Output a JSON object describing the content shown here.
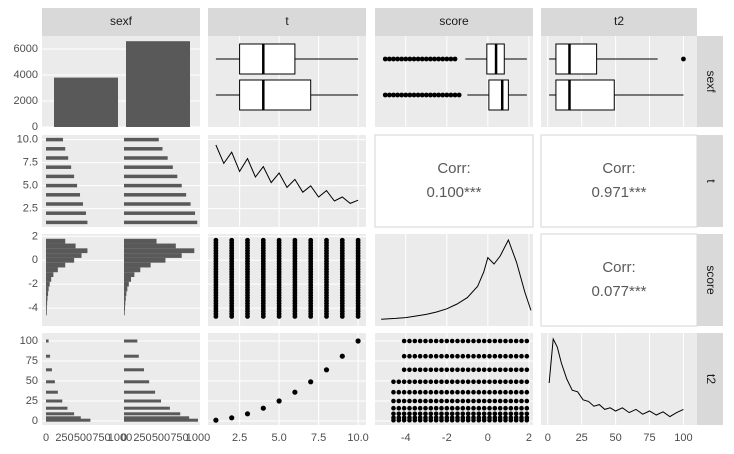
{
  "chart_data": {
    "type": "pairs",
    "variables": [
      "sexf",
      "t",
      "score",
      "t2"
    ],
    "colors": {
      "panel_bg": "#ebebeb",
      "strip_bg": "#d9d9d9",
      "grid": "#ffffff",
      "bar": "#595959",
      "ink": "#000000",
      "corr_text": "#595959",
      "axis_text": "#4d4d4d"
    },
    "axes": {
      "sexf_count": {
        "range": [
          0,
          7000
        ],
        "ticks": [
          "0",
          "2000",
          "4000",
          "6000"
        ]
      },
      "t": {
        "range": [
          0.5,
          10.5
        ],
        "ticks": [
          "2.5",
          "5.0",
          "7.5",
          "10.0"
        ]
      },
      "score": {
        "range": [
          -5.5,
          2.2
        ],
        "x_ticks": [
          "-4",
          "-2",
          "0",
          "2"
        ],
        "y_ticks": [
          "-4",
          "-2",
          "0",
          "2"
        ]
      },
      "t2": {
        "range": [
          -5,
          110
        ],
        "ticks": [
          "0",
          "25",
          "50",
          "75",
          "100"
        ]
      },
      "facet_count_ticks": [
        "0",
        "250",
        "500",
        "750",
        "1000"
      ]
    },
    "sexf_counts": {
      "group_1": 3800,
      "group_2": 6600
    },
    "boxplots": {
      "t": [
        {
          "min": 1,
          "q1": 2.5,
          "median": 4,
          "q3": 6,
          "max": 10
        },
        {
          "min": 1,
          "q1": 2.5,
          "median": 4,
          "q3": 7,
          "max": 10
        }
      ],
      "score": [
        {
          "min": -1.1,
          "q1": -0.05,
          "median": 0.4,
          "q3": 0.8,
          "max": 1.9,
          "outlier_low": -5.0,
          "outlier_high": -1.4
        },
        {
          "min": -1.0,
          "q1": 0.05,
          "median": 0.7,
          "q3": 1.0,
          "max": 1.9,
          "outlier_low": -5.0,
          "outlier_high": -1.3
        }
      ],
      "t2": [
        {
          "min": 1,
          "q1": 6,
          "median": 16,
          "q3": 36,
          "max": 81,
          "outlier": 100
        },
        {
          "min": 1,
          "q1": 6,
          "median": 16,
          "q3": 49,
          "max": 100
        }
      ]
    },
    "t_levels": [
      1,
      2,
      3,
      4,
      5,
      6,
      7,
      8,
      9,
      10
    ],
    "t_hist_counts": {
      "group_1": [
        560,
        540,
        500,
        460,
        420,
        380,
        340,
        300,
        260,
        230
      ],
      "group_2": [
        990,
        960,
        900,
        840,
        780,
        720,
        660,
        590,
        520,
        470
      ]
    },
    "t2_values": [
      1,
      4,
      9,
      16,
      25,
      36,
      49,
      64,
      81,
      100
    ],
    "t2_hist_counts": {
      "group_1": [
        600,
        470,
        380,
        290,
        220,
        160,
        120,
        80,
        55,
        35
      ],
      "group_2": [
        1000,
        880,
        760,
        620,
        500,
        420,
        340,
        270,
        200,
        180
      ]
    },
    "score_hist": {
      "bins": [
        -4.6,
        -4.2,
        -3.8,
        -3.4,
        -3.0,
        -2.6,
        -2.2,
        -1.8,
        -1.4,
        -1.0,
        -0.6,
        -0.2,
        0.2,
        0.6,
        1.0,
        1.4,
        1.8
      ],
      "group_1": [
        10,
        12,
        15,
        20,
        28,
        36,
        50,
        70,
        100,
        160,
        260,
        380,
        480,
        560,
        400,
        260
      ],
      "group_2": [
        10,
        14,
        18,
        24,
        32,
        45,
        65,
        95,
        140,
        220,
        360,
        560,
        780,
        950,
        700,
        440
      ]
    },
    "t_density": {
      "x": [
        1,
        1.5,
        2,
        2.5,
        3,
        3.5,
        4,
        4.5,
        5,
        5.5,
        6,
        6.5,
        7,
        7.5,
        8,
        8.5,
        9,
        9.5,
        10
      ],
      "y": [
        0.95,
        0.72,
        0.86,
        0.62,
        0.78,
        0.55,
        0.68,
        0.48,
        0.6,
        0.42,
        0.52,
        0.36,
        0.44,
        0.3,
        0.38,
        0.25,
        0.3,
        0.22,
        0.26
      ]
    },
    "score_density": {
      "x": [
        -5.2,
        -4.5,
        -4,
        -3.5,
        -3,
        -2.5,
        -2,
        -1.5,
        -1,
        -0.5,
        -0.2,
        0,
        0.3,
        0.6,
        1,
        1.4,
        1.8,
        2.1
      ],
      "y": [
        0.01,
        0.02,
        0.03,
        0.05,
        0.07,
        0.1,
        0.14,
        0.2,
        0.28,
        0.42,
        0.6,
        0.78,
        0.7,
        0.8,
        1.0,
        0.72,
        0.35,
        0.12
      ]
    },
    "t2_density": {
      "x": [
        1,
        4,
        7,
        10,
        14,
        18,
        22,
        26,
        30,
        34,
        38,
        42,
        46,
        50,
        55,
        60,
        65,
        70,
        75,
        80,
        85,
        90,
        95,
        100
      ],
      "y": [
        0.45,
        1.0,
        0.9,
        0.7,
        0.5,
        0.36,
        0.34,
        0.24,
        0.22,
        0.16,
        0.18,
        0.12,
        0.14,
        0.1,
        0.14,
        0.08,
        0.12,
        0.06,
        0.1,
        0.05,
        0.09,
        0.03,
        0.08,
        0.12
      ]
    },
    "correlations": [
      {
        "row": "t",
        "col": "score",
        "label": "Corr:",
        "value": "0.100***"
      },
      {
        "row": "t",
        "col": "t2",
        "label": "Corr:",
        "value": "0.971***"
      },
      {
        "row": "score",
        "col": "t2",
        "label": "Corr:",
        "value": "0.077***"
      }
    ],
    "grid": true,
    "legend": "none"
  }
}
